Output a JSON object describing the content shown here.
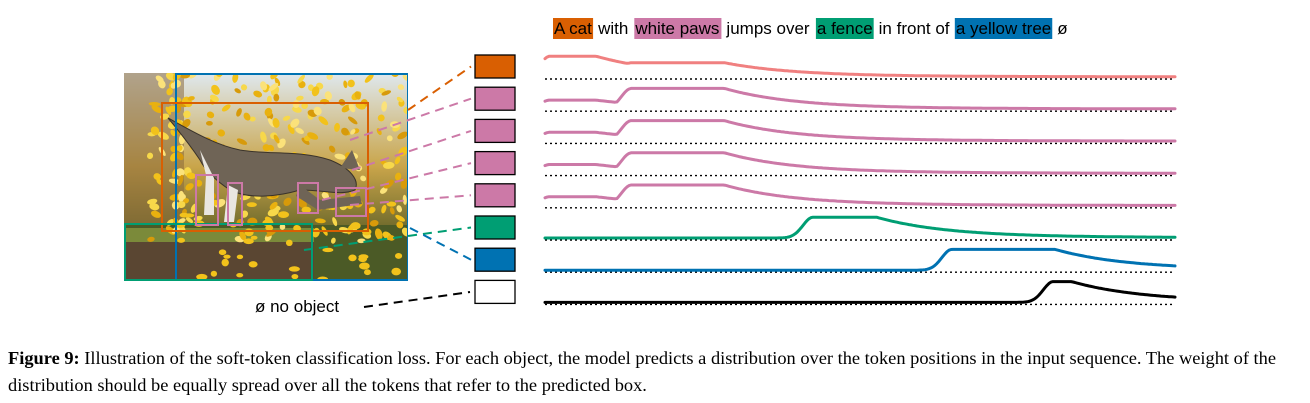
{
  "caption": {
    "label": "Figure 9:",
    "text": "Illustration of the soft-token classification loss. For each object, the model predicts a distribution over the token positions in the input sequence. The weight of the distribution should be equally spread over all the tokens that refer to the predicted box."
  },
  "sentence": {
    "segments": [
      {
        "text": "A cat",
        "highlight": "#d95f02"
      },
      {
        "text": "with",
        "highlight": null
      },
      {
        "text": "white paws",
        "highlight": "#cc79a7"
      },
      {
        "text": "jumps over",
        "highlight": null
      },
      {
        "text": "a fence",
        "highlight": "#009e73"
      },
      {
        "text": "in front of",
        "highlight": null
      },
      {
        "text": "a yellow tree",
        "highlight": "#0072b2"
      },
      {
        "text": "ø",
        "highlight": null
      }
    ]
  },
  "no_object_label": "ø no object",
  "colors": {
    "cat": "#d95f02",
    "paws": "#cc79a7",
    "fence": "#009e73",
    "tree": "#0072b2",
    "cat_curve": "#f08080",
    "no_object": "#000000"
  },
  "rows": [
    {
      "object": "cat",
      "box_color": "#d95f02",
      "curve_color": "#f08080",
      "bumps": [
        {
          "tokens": "A cat",
          "level": 0.8
        },
        {
          "tokens": "white paws",
          "level": 0.55
        }
      ]
    },
    {
      "object": "paw",
      "box_color": "#cc79a7",
      "curve_color": "#cc79a7",
      "bumps": [
        {
          "tokens": "A cat",
          "level": 0.35
        },
        {
          "tokens": "white paws",
          "level": 0.8
        }
      ]
    },
    {
      "object": "paw",
      "box_color": "#cc79a7",
      "curve_color": "#cc79a7",
      "bumps": [
        {
          "tokens": "A cat",
          "level": 0.35
        },
        {
          "tokens": "white paws",
          "level": 0.8
        }
      ]
    },
    {
      "object": "paw",
      "box_color": "#cc79a7",
      "curve_color": "#cc79a7",
      "bumps": [
        {
          "tokens": "A cat",
          "level": 0.35
        },
        {
          "tokens": "white paws",
          "level": 0.8
        }
      ]
    },
    {
      "object": "paw",
      "box_color": "#cc79a7",
      "curve_color": "#cc79a7",
      "bumps": [
        {
          "tokens": "A cat",
          "level": 0.35
        },
        {
          "tokens": "white paws",
          "level": 0.8
        }
      ]
    },
    {
      "object": "fence",
      "box_color": "#009e73",
      "curve_color": "#009e73",
      "bumps": [
        {
          "tokens": "a fence",
          "level": 0.8
        }
      ]
    },
    {
      "object": "tree",
      "box_color": "#0072b2",
      "curve_color": "#0072b2",
      "bumps": [
        {
          "tokens": "a yellow tree",
          "level": 0.8
        }
      ]
    },
    {
      "object": "no object",
      "box_color": "#ffffff",
      "curve_color": "#000000",
      "bumps": [
        {
          "tokens": "ø",
          "level": 0.8
        }
      ]
    }
  ],
  "photo_boxes": [
    {
      "object": "tree",
      "color": "#0072b2"
    },
    {
      "object": "cat",
      "color": "#d95f02"
    },
    {
      "object": "fence",
      "color": "#009e73"
    },
    {
      "object": "paw",
      "color": "#cc79a7"
    },
    {
      "object": "paw",
      "color": "#cc79a7"
    },
    {
      "object": "paw",
      "color": "#cc79a7"
    },
    {
      "object": "paw",
      "color": "#cc79a7"
    }
  ]
}
